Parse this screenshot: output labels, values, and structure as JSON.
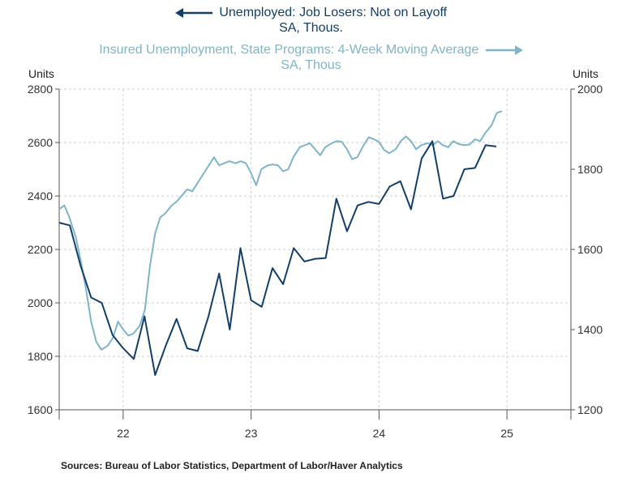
{
  "legend": {
    "left_series_line1": "Unemployed: Job Losers: Not on Layoff",
    "left_series_line2": "SA, Thous.",
    "right_series_line1": "Insured Unemployment, State Programs: 4-Week Moving Average",
    "right_series_line2": "SA, Thous"
  },
  "units_left": "Units",
  "units_right": "Units",
  "source": "Sources:  Bureau of Labor Statistics, Department of Labor/Haver Analytics",
  "colors": {
    "left_series": "#123f6a",
    "right_series": "#7fb5c8",
    "grid": "#cfcfcf",
    "axis": "#555555"
  },
  "chart_data": {
    "type": "line",
    "x_axis": {
      "labels": [
        "22",
        "23",
        "24",
        "25"
      ],
      "unit": "year",
      "range": [
        2021.5,
        2025.5
      ]
    },
    "left_axis": {
      "ylim": [
        1600,
        2800
      ],
      "ticks": [
        1600,
        1800,
        2000,
        2200,
        2400,
        2600,
        2800
      ]
    },
    "right_axis": {
      "ylim": [
        1200,
        2000
      ],
      "ticks": [
        1200,
        1400,
        1600,
        1800,
        2000
      ]
    },
    "grid": true,
    "series": [
      {
        "name": "Unemployed: Job Losers: Not on Layoff",
        "axis": "left",
        "frequency": "monthly",
        "x": [
          2021.5,
          2021.583,
          2021.667,
          2021.75,
          2021.833,
          2021.917,
          2022.0,
          2022.083,
          2022.167,
          2022.25,
          2022.333,
          2022.417,
          2022.5,
          2022.583,
          2022.667,
          2022.75,
          2022.833,
          2022.917,
          2023.0,
          2023.083,
          2023.167,
          2023.25,
          2023.333,
          2023.417,
          2023.5,
          2023.583,
          2023.667,
          2023.75,
          2023.833,
          2023.917,
          2024.0,
          2024.083,
          2024.167,
          2024.25,
          2024.333,
          2024.417,
          2024.5,
          2024.583,
          2024.667,
          2024.75,
          2024.833,
          2024.917
        ],
        "y": [
          2300,
          2290,
          2140,
          2020,
          2000,
          1880,
          1830,
          1790,
          1950,
          1730,
          1840,
          1940,
          1830,
          1820,
          1950,
          2110,
          1900,
          2205,
          2010,
          1985,
          2130,
          2070,
          2205,
          2155,
          2165,
          2168,
          2390,
          2268,
          2365,
          2378,
          2370,
          2435,
          2455,
          2350,
          2540,
          2605,
          2390,
          2400,
          2500,
          2505,
          2590,
          2585
        ]
      },
      {
        "name": "Insured Unemployment, State Programs: 4-Week Moving Average",
        "axis": "right",
        "frequency": "weekly",
        "x": [
          2021.5,
          2021.54,
          2021.58,
          2021.63,
          2021.67,
          2021.71,
          2021.75,
          2021.79,
          2021.83,
          2021.88,
          2021.92,
          2021.96,
          2022.0,
          2022.04,
          2022.08,
          2022.13,
          2022.17,
          2022.21,
          2022.25,
          2022.29,
          2022.33,
          2022.38,
          2022.42,
          2022.46,
          2022.5,
          2022.54,
          2022.58,
          2022.63,
          2022.67,
          2022.71,
          2022.75,
          2022.79,
          2022.83,
          2022.88,
          2022.92,
          2022.96,
          2023.0,
          2023.04,
          2023.08,
          2023.13,
          2023.17,
          2023.21,
          2023.25,
          2023.29,
          2023.33,
          2023.38,
          2023.42,
          2023.46,
          2023.5,
          2023.54,
          2023.58,
          2023.63,
          2023.67,
          2023.71,
          2023.75,
          2023.79,
          2023.83,
          2023.88,
          2023.92,
          2023.96,
          2024.0,
          2024.04,
          2024.08,
          2024.13,
          2024.17,
          2024.21,
          2024.25,
          2024.29,
          2024.33,
          2024.38,
          2024.42,
          2024.46,
          2024.5,
          2024.54,
          2024.58,
          2024.63,
          2024.67,
          2024.71,
          2024.75,
          2024.79,
          2024.83,
          2024.88,
          2024.92,
          2024.96
        ],
        "y": [
          1700,
          1710,
          1680,
          1630,
          1570,
          1500,
          1420,
          1370,
          1350,
          1360,
          1380,
          1420,
          1400,
          1385,
          1390,
          1410,
          1450,
          1560,
          1640,
          1680,
          1690,
          1710,
          1720,
          1735,
          1750,
          1745,
          1765,
          1790,
          1810,
          1830,
          1810,
          1815,
          1820,
          1815,
          1820,
          1815,
          1790,
          1760,
          1800,
          1810,
          1812,
          1810,
          1795,
          1800,
          1830,
          1855,
          1860,
          1865,
          1850,
          1835,
          1855,
          1865,
          1870,
          1868,
          1850,
          1825,
          1830,
          1860,
          1880,
          1875,
          1868,
          1848,
          1840,
          1850,
          1870,
          1882,
          1870,
          1850,
          1860,
          1865,
          1860,
          1870,
          1860,
          1855,
          1870,
          1862,
          1860,
          1862,
          1875,
          1870,
          1890,
          1910,
          1940,
          1945
        ]
      }
    ]
  }
}
